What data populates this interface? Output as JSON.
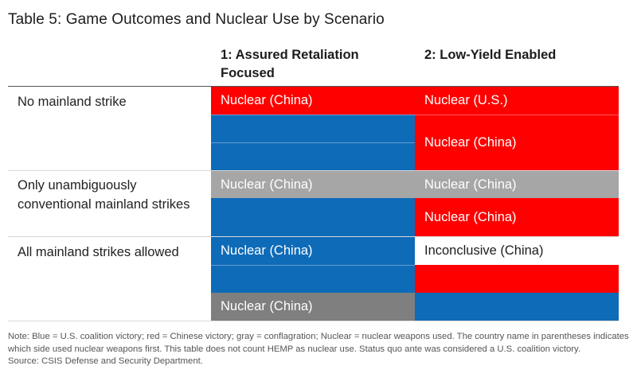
{
  "title": "Table 5: Game Outcomes and Nuclear Use by Scenario",
  "columns": {
    "c1": "1: Assured Retaliation Focused",
    "c2": "2: Low-Yield Enabled"
  },
  "rows": {
    "r1": "No mainland strike",
    "r2": "Only unambiguously conventional mainland strikes",
    "r3": "All mainland strikes allowed"
  },
  "cells": {
    "r1_c1_a": "Nuclear (China)",
    "r1_c2_a": "Nuclear (U.S.)",
    "r1_c2_b": "Nuclear (China)",
    "r2_c1_a": "Nuclear (China)",
    "r2_c2_a": "Nuclear (China)",
    "r2_c2_b": "Nuclear (China)",
    "r3_c1_a": "Nuclear (China)",
    "r3_c1_c": "Nuclear (China)",
    "r3_c2_a": "Inconclusive (China)"
  },
  "colors": {
    "blue": "#0e6bb8",
    "red": "#ff0000",
    "gray": "#a6a6a6",
    "dark_gray": "#7f7f7f"
  },
  "note": {
    "text": "Note: Blue = U.S. coalition victory; red = Chinese victory; gray = conflagration; Nuclear = nuclear weapons used. The country name in parentheses indicates which side used nuclear weapons first. This table does not count HEMP as nuclear use. Status quo ante was considered a U.S. coalition victory.",
    "source": "Source: CSIS Defense and Security Department."
  }
}
